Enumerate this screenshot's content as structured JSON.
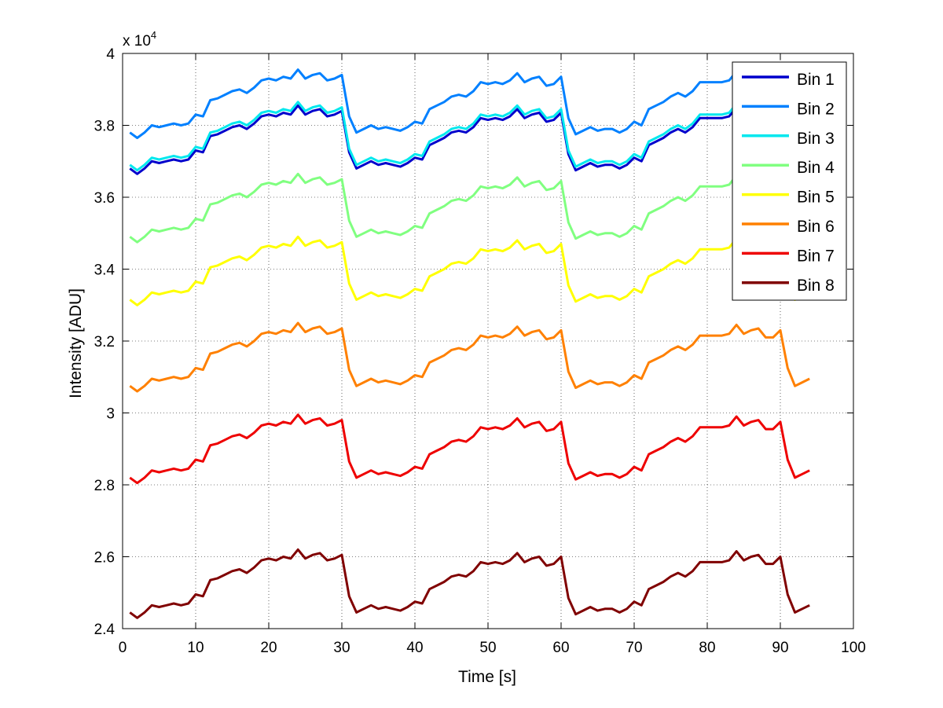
{
  "chart_data": {
    "type": "line",
    "xlabel": "Time [s]",
    "ylabel": "Intensity [ADU]",
    "y_exponent_label": "x 10",
    "y_exponent_power": "4",
    "xlim": [
      0,
      100
    ],
    "ylim": [
      2.4,
      4.0
    ],
    "xticks": [
      0,
      10,
      20,
      30,
      40,
      50,
      60,
      70,
      80,
      90,
      100
    ],
    "yticks": [
      2.4,
      2.6,
      2.8,
      3.0,
      3.2,
      3.4,
      3.6,
      3.8,
      4.0
    ],
    "xtick_labels": [
      "0",
      "10",
      "20",
      "30",
      "40",
      "50",
      "60",
      "70",
      "80",
      "90",
      "100"
    ],
    "ytick_labels": [
      "2.4",
      "2.6",
      "2.8",
      "3",
      "3.2",
      "3.4",
      "3.6",
      "3.8",
      "4"
    ],
    "grid": true,
    "legend_position": "top-right",
    "x_start": 1,
    "x_step": 1,
    "series": [
      {
        "name": "Bin 1",
        "color": "#0000cc",
        "offset": 3.68
      },
      {
        "name": "Bin 2",
        "color": "#0080ff",
        "offset": 3.78
      },
      {
        "name": "Bin 3",
        "color": "#00e8ee",
        "offset": 3.69
      },
      {
        "name": "Bin 4",
        "color": "#80ff80",
        "offset": 3.49
      },
      {
        "name": "Bin 5",
        "color": "#ffff00",
        "offset": 3.315
      },
      {
        "name": "Bin 6",
        "color": "#ff8000",
        "offset": 3.075
      },
      {
        "name": "Bin 7",
        "color": "#ee0000",
        "offset": 2.82
      },
      {
        "name": "Bin 8",
        "color": "#800000",
        "offset": 2.445
      }
    ],
    "visible_range": [
      {
        "name": "Bin 1",
        "x_max": 93
      },
      {
        "name": "Bin 2",
        "x_max": 93
      },
      {
        "name": "Bin 3",
        "x_max": 93
      },
      {
        "name": "Bin 4",
        "x_max": 93
      },
      {
        "name": "Bin 5",
        "x_max": 94
      },
      {
        "name": "Bin 6",
        "x_max": 94
      },
      {
        "name": "Bin 7",
        "x_max": 94
      },
      {
        "name": "Bin 8",
        "x_max": 94
      }
    ],
    "pattern": [
      0,
      -0.015,
      0,
      0.02,
      0.015,
      0.02,
      0.025,
      0.02,
      0.025,
      0.05,
      0.045,
      0.09,
      0.095,
      0.105,
      0.115,
      0.12,
      0.11,
      0.125,
      0.145,
      0.15,
      0.145,
      0.155,
      0.15,
      0.175,
      0.15,
      0.16,
      0.165,
      0.145,
      0.15,
      0.16,
      0.045,
      0.0,
      0.01,
      0.02,
      0.01,
      0.015,
      0.01,
      0.005,
      0.015,
      0.03,
      0.025,
      0.065,
      0.075,
      0.085,
      0.1,
      0.105,
      0.1,
      0.115,
      0.14,
      0.135,
      0.14,
      0.135,
      0.145,
      0.165,
      0.14,
      0.15,
      0.155,
      0.13,
      0.135,
      0.155,
      0.04,
      -0.005,
      0.005,
      0.015,
      0.005,
      0.01,
      0.01,
      0.0,
      0.01,
      0.03,
      0.02,
      0.065,
      0.075,
      0.085,
      0.1,
      0.11,
      0.1,
      0.115,
      0.14,
      0.14,
      0.14,
      0.14,
      0.145,
      0.17,
      0.145,
      0.155,
      0.16,
      0.135,
      0.135,
      0.155,
      0.05,
      0.0,
      0.01,
      0.02
    ]
  }
}
